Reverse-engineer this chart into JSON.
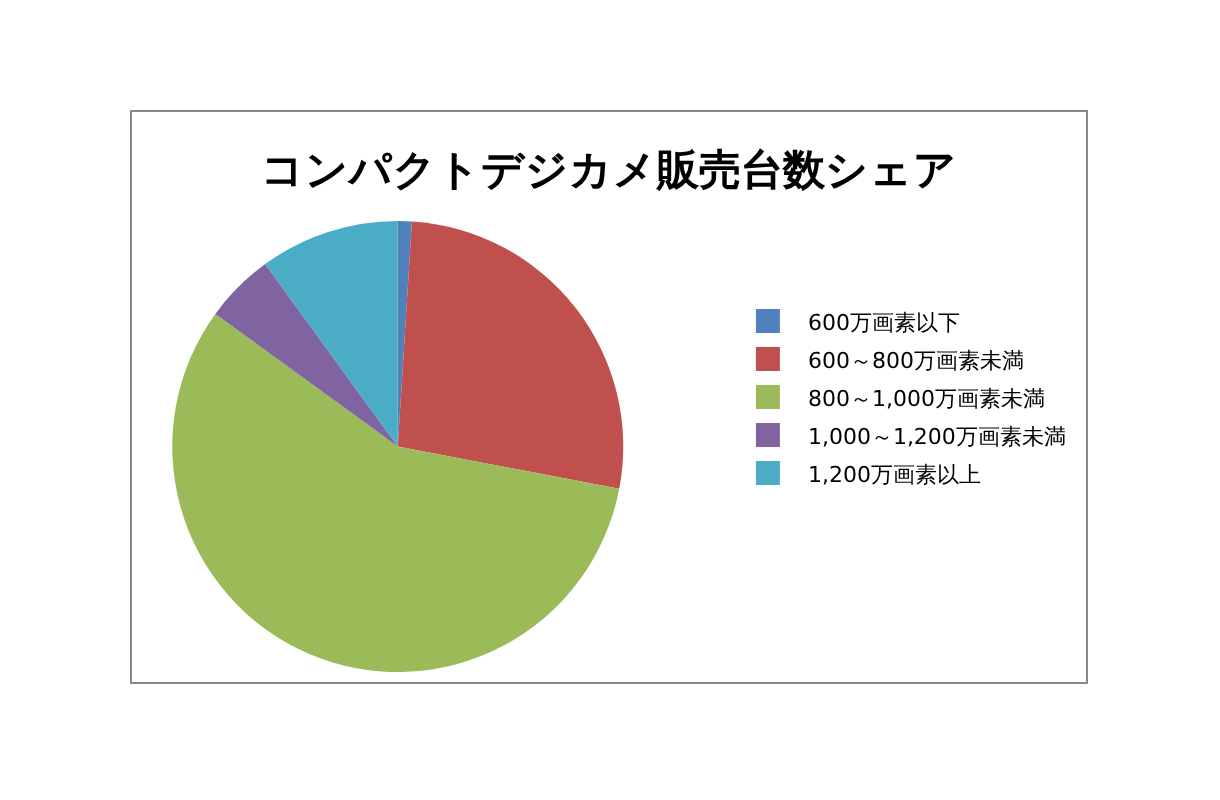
{
  "chart_data": {
    "type": "pie",
    "title": "コンパクトデジカメ販売台数シェア",
    "categories": [
      "600万画素以下",
      "600～800万画素未満",
      "800～1,000万画素未満",
      "1,000～1,200万画素未満",
      "1,200万画素以上"
    ],
    "values": [
      1,
      27,
      57,
      5,
      10
    ],
    "colors": [
      "#4f81bd",
      "#c0504d",
      "#9bbb59",
      "#8064a2",
      "#4bacc6"
    ],
    "legend": "right"
  }
}
